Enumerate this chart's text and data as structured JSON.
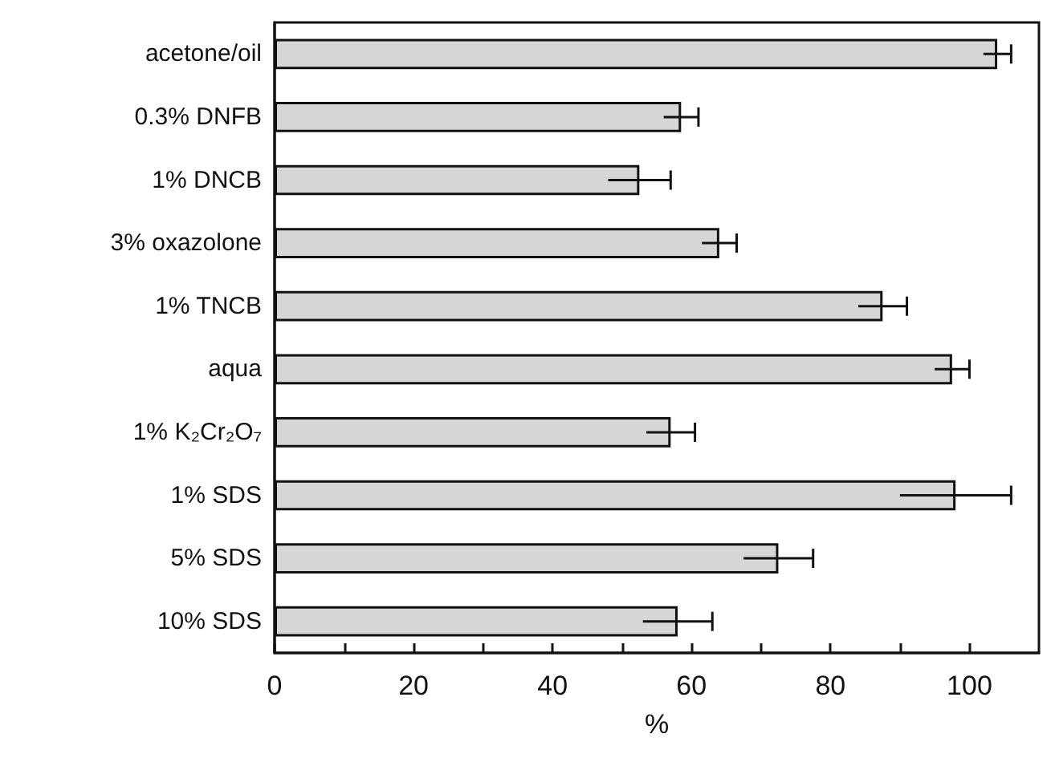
{
  "chart_data": {
    "type": "bar",
    "orientation": "horizontal",
    "xlabel": "%",
    "categories": [
      "acetone/oil",
      "0.3% DNFB",
      "1% DNCB",
      "3% oxazolone",
      "1% TNCB",
      "aqua",
      "1% K₂Cr₂O₇",
      "1% SDS",
      "5% SDS",
      "10% SDS"
    ],
    "values": [
      104,
      58.5,
      52.5,
      64,
      87.5,
      97.5,
      57,
      98,
      72.5,
      58
    ],
    "errors": [
      2,
      2.5,
      4.5,
      2.5,
      3.5,
      2.5,
      3.5,
      8,
      5,
      5
    ],
    "color": "#d6d6d6",
    "xlim": [
      0,
      110
    ],
    "xticks": [
      0,
      {
        "value": 10,
        "label": null
      },
      20,
      {
        "value": 30,
        "label": null
      },
      40,
      {
        "value": 50,
        "label": null
      },
      60,
      {
        "value": 70,
        "label": null
      },
      80,
      {
        "value": 90,
        "label": null
      },
      100
    ],
    "marker": "none"
  }
}
